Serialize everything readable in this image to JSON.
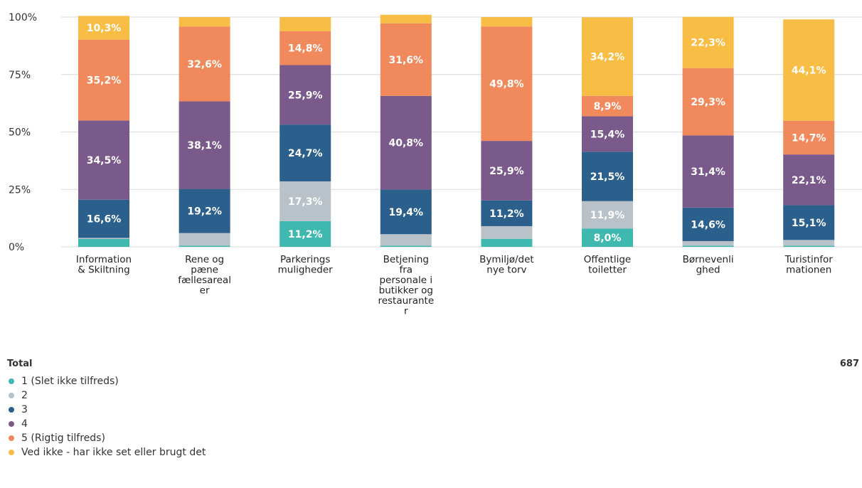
{
  "chart_data": {
    "type": "bar",
    "stacked": true,
    "y_ticks": [
      "0%",
      "25%",
      "50%",
      "75%",
      "100%"
    ],
    "ylim": [
      0,
      100
    ],
    "categories": [
      [
        "Information",
        "& Skiltning"
      ],
      [
        "Rene og",
        "pæne",
        "fællesareal",
        "er"
      ],
      [
        "Parkerings",
        "muligheder"
      ],
      [
        "Betjening",
        "fra",
        "personale i",
        "butikker og",
        "restaurante",
        "r"
      ],
      [
        "Bymiljø/det",
        "nye torv"
      ],
      [
        "Offentlige",
        "toiletter"
      ],
      [
        "Børnevenli",
        "ghed"
      ],
      [
        "Turistinfor",
        "mationen"
      ]
    ],
    "series": [
      {
        "name": "1 (Slet ikke tilfreds)",
        "color": "#3fb8af",
        "values": [
          3.4,
          0.5,
          11.2,
          0.5,
          3.5,
          8.0,
          0.5,
          0.5
        ],
        "labels": [
          "",
          "",
          "11,2%",
          "",
          "",
          "8,0%",
          "",
          ""
        ]
      },
      {
        "name": "2",
        "color": "#b8c2c8",
        "values": [
          0.5,
          5.5,
          17.3,
          5.0,
          5.5,
          11.9,
          2.0,
          2.5
        ],
        "labels": [
          "",
          "",
          "17,3%",
          "",
          "",
          "11,9%",
          "",
          ""
        ]
      },
      {
        "name": "3",
        "color": "#2b5f8c",
        "values": [
          16.6,
          19.2,
          24.7,
          19.4,
          11.2,
          21.5,
          14.6,
          15.1
        ],
        "labels": [
          "16,6%",
          "19,2%",
          "24,7%",
          "19,4%",
          "11,2%",
          "21,5%",
          "14,6%",
          "15,1%"
        ]
      },
      {
        "name": "4",
        "color": "#795a8a",
        "values": [
          34.5,
          38.1,
          25.9,
          40.8,
          25.9,
          15.4,
          31.4,
          22.1
        ],
        "labels": [
          "34,5%",
          "38,1%",
          "25,9%",
          "40,8%",
          "25,9%",
          "15,4%",
          "31,4%",
          "22,1%"
        ]
      },
      {
        "name": "5 (Rigtig tilfreds)",
        "color": "#f08a5d",
        "values": [
          35.2,
          32.6,
          14.8,
          31.6,
          49.8,
          8.9,
          29.3,
          14.7
        ],
        "labels": [
          "35,2%",
          "32,6%",
          "14,8%",
          "31,6%",
          "49,8%",
          "8,9%",
          "29,3%",
          "14,7%"
        ]
      },
      {
        "name": "Ved ikke - har ikke set eller brugt det",
        "color": "#f8bd45",
        "values": [
          10.3,
          4.1,
          6.1,
          3.7,
          4.1,
          34.2,
          22.3,
          44.1
        ],
        "labels": [
          "10,3%",
          "",
          "",
          "",
          "",
          "34,2%",
          "22,3%",
          "44,1%"
        ]
      }
    ]
  },
  "legend": {
    "title": "Total",
    "total": "687"
  }
}
